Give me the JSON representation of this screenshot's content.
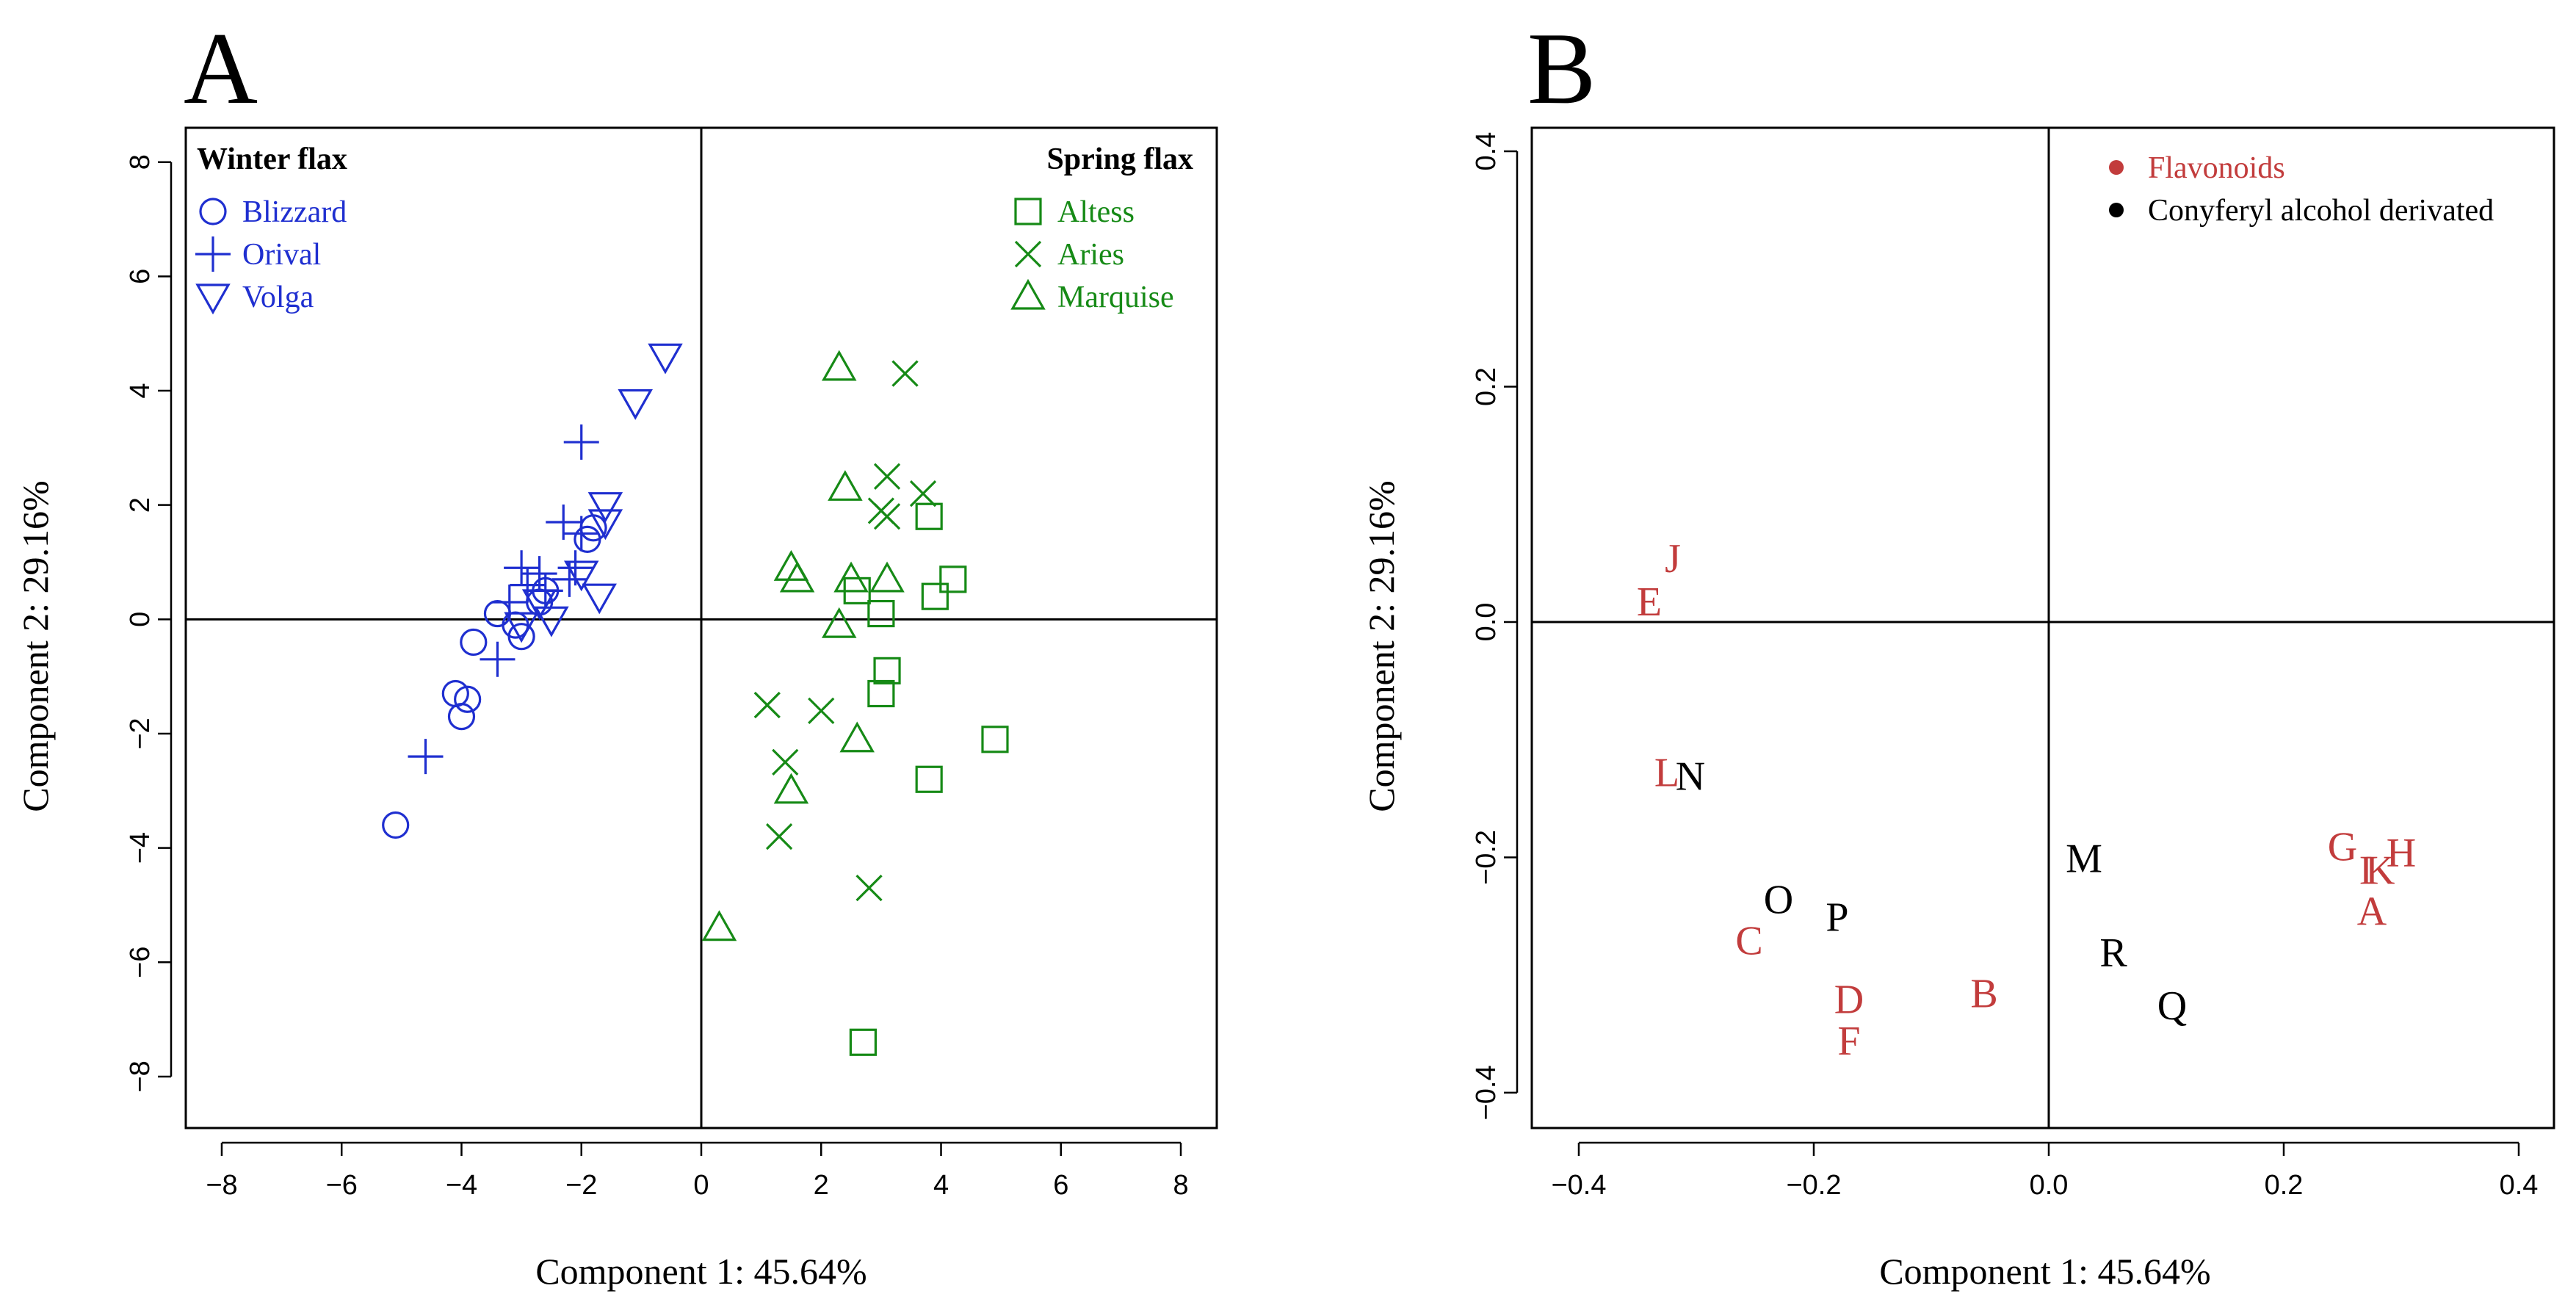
{
  "colors": {
    "winter": "#1f2fd0",
    "spring": "#168a16",
    "flavonoids": "#c23c3c",
    "conyferyl": "#000000"
  },
  "chart_data": [
    {
      "panel": "A",
      "type": "scatter",
      "xlabel": "Component 1: 45.64%",
      "ylabel": "Component 2: 29.16%",
      "xlim": [
        -8.6,
        8.6
      ],
      "ylim": [
        -8.9,
        8.6
      ],
      "xticks": [
        -8,
        -6,
        -4,
        -2,
        0,
        2,
        4,
        6,
        8
      ],
      "yticks": [
        -8,
        -6,
        -4,
        -2,
        0,
        2,
        4,
        6,
        8
      ],
      "grid": false,
      "reference_lines": {
        "x": 0,
        "y": 0
      },
      "legends": [
        {
          "title": "Winter flax",
          "placement": "top-left",
          "entries": [
            "Blizzard",
            "Orival",
            "Volga"
          ]
        },
        {
          "title": "Spring flax",
          "placement": "top-right",
          "entries": [
            "Altess",
            "Aries",
            "Marquise"
          ]
        }
      ],
      "series": [
        {
          "name": "Blizzard",
          "group": "Winter flax",
          "marker": "circle",
          "color": "#1f2fd0",
          "points": [
            [
              -5.1,
              -3.6
            ],
            [
              -4.0,
              -1.7
            ],
            [
              -4.1,
              -1.3
            ],
            [
              -3.9,
              -1.4
            ],
            [
              -3.8,
              -0.4
            ],
            [
              -3.4,
              0.1
            ],
            [
              -3.0,
              -0.3
            ],
            [
              -3.1,
              -0.1
            ],
            [
              -2.7,
              0.3
            ],
            [
              -2.6,
              0.5
            ],
            [
              -1.9,
              1.4
            ],
            [
              -1.8,
              1.6
            ]
          ]
        },
        {
          "name": "Orival",
          "group": "Winter flax",
          "marker": "plus",
          "color": "#1f2fd0",
          "points": [
            [
              -4.6,
              -2.4
            ],
            [
              -3.4,
              -0.7
            ],
            [
              -3.2,
              0.3
            ],
            [
              -3.0,
              0.9
            ],
            [
              -2.9,
              0.6
            ],
            [
              -2.7,
              0.8
            ],
            [
              -2.6,
              0.5
            ],
            [
              -2.3,
              1.7
            ],
            [
              -2.2,
              0.7
            ],
            [
              -2.1,
              0.9
            ],
            [
              -2.0,
              1.5
            ],
            [
              -2.0,
              3.1
            ]
          ]
        },
        {
          "name": "Volga",
          "group": "Winter flax",
          "marker": "triangle-down",
          "color": "#1f2fd0",
          "points": [
            [
              -0.6,
              4.6
            ],
            [
              -1.1,
              3.8
            ],
            [
              -1.6,
              2.0
            ],
            [
              -1.6,
              1.7
            ],
            [
              -1.7,
              0.4
            ],
            [
              -2.0,
              0.8
            ],
            [
              -2.5,
              0.0
            ],
            [
              -2.7,
              0.3
            ],
            [
              -3.0,
              -0.1
            ]
          ]
        },
        {
          "name": "Altess",
          "group": "Spring flax",
          "marker": "square",
          "color": "#168a16",
          "points": [
            [
              2.7,
              -7.4
            ],
            [
              3.8,
              -2.8
            ],
            [
              4.9,
              -2.1
            ],
            [
              3.0,
              -1.3
            ],
            [
              3.1,
              -0.9
            ],
            [
              3.0,
              0.1
            ],
            [
              2.6,
              0.5
            ],
            [
              3.9,
              0.4
            ],
            [
              3.8,
              1.8
            ],
            [
              4.2,
              0.7
            ]
          ]
        },
        {
          "name": "Aries",
          "group": "Spring flax",
          "marker": "x",
          "color": "#168a16",
          "points": [
            [
              3.4,
              4.3
            ],
            [
              3.1,
              2.5
            ],
            [
              3.7,
              2.2
            ],
            [
              3.0,
              1.9
            ],
            [
              3.1,
              1.8
            ],
            [
              1.1,
              -1.5
            ],
            [
              2.0,
              -1.6
            ],
            [
              1.4,
              -2.5
            ],
            [
              1.3,
              -3.8
            ],
            [
              2.8,
              -4.7
            ]
          ]
        },
        {
          "name": "Marquise",
          "group": "Spring flax",
          "marker": "triangle-up",
          "color": "#168a16",
          "points": [
            [
              2.3,
              4.4
            ],
            [
              2.4,
              2.3
            ],
            [
              1.5,
              0.9
            ],
            [
              1.6,
              0.7
            ],
            [
              2.5,
              0.7
            ],
            [
              3.1,
              0.7
            ],
            [
              2.3,
              -0.1
            ],
            [
              2.6,
              -2.1
            ],
            [
              1.5,
              -3.0
            ],
            [
              0.3,
              -5.4
            ]
          ]
        }
      ]
    },
    {
      "panel": "B",
      "type": "scatter",
      "xlabel": "Component 1: 45.64%",
      "ylabel": "Component 2: 29.16%",
      "xlim": [
        -0.44,
        0.43
      ],
      "ylim": [
        -0.43,
        0.42
      ],
      "xticks": [
        -0.4,
        -0.2,
        0.0,
        0.2,
        0.4
      ],
      "xtick_labels": [
        "-0.4",
        "-0.2",
        "0.0",
        "0.2",
        "0.4"
      ],
      "yticks": [
        -0.4,
        -0.2,
        0.0,
        0.2,
        0.4
      ],
      "ytick_labels": [
        "-0.4",
        "-0.2",
        "0.0",
        "0.2",
        "0.4"
      ],
      "grid": false,
      "reference_lines": {
        "x": 0,
        "y": 0
      },
      "legend": {
        "placement": "top-right",
        "entries": [
          {
            "label": "Flavonoids",
            "color": "#c23c3c"
          },
          {
            "label": "Conyferyl alcohol derivated",
            "color": "#000000"
          }
        ]
      },
      "labels": [
        {
          "text": "A",
          "x": 0.275,
          "y": -0.245,
          "group": "Flavonoids"
        },
        {
          "text": "B",
          "x": -0.055,
          "y": -0.315,
          "group": "Flavonoids"
        },
        {
          "text": "C",
          "x": -0.255,
          "y": -0.27,
          "group": "Flavonoids"
        },
        {
          "text": "D",
          "x": -0.17,
          "y": -0.32,
          "group": "Flavonoids"
        },
        {
          "text": "E",
          "x": -0.34,
          "y": 0.018,
          "group": "Flavonoids"
        },
        {
          "text": "F",
          "x": -0.17,
          "y": -0.355,
          "group": "Flavonoids"
        },
        {
          "text": "G",
          "x": 0.25,
          "y": -0.19,
          "group": "Flavonoids"
        },
        {
          "text": "H",
          "x": 0.3,
          "y": -0.195,
          "group": "Flavonoids"
        },
        {
          "text": "I",
          "x": 0.27,
          "y": -0.21,
          "group": "Flavonoids"
        },
        {
          "text": "J",
          "x": -0.32,
          "y": 0.055,
          "group": "Flavonoids"
        },
        {
          "text": "K",
          "x": 0.282,
          "y": -0.21,
          "group": "Flavonoids"
        },
        {
          "text": "L",
          "x": -0.325,
          "y": -0.127,
          "group": "Flavonoids"
        },
        {
          "text": "M",
          "x": 0.03,
          "y": -0.2,
          "group": "Conyferyl alcohol derivated"
        },
        {
          "text": "N",
          "x": -0.305,
          "y": -0.13,
          "group": "Conyferyl alcohol derivated"
        },
        {
          "text": "O",
          "x": -0.23,
          "y": -0.235,
          "group": "Conyferyl alcohol derivated"
        },
        {
          "text": "P",
          "x": -0.18,
          "y": -0.25,
          "group": "Conyferyl alcohol derivated"
        },
        {
          "text": "Q",
          "x": 0.105,
          "y": -0.325,
          "group": "Conyferyl alcohol derivated"
        },
        {
          "text": "R",
          "x": 0.055,
          "y": -0.28,
          "group": "Conyferyl alcohol derivated"
        }
      ]
    }
  ]
}
